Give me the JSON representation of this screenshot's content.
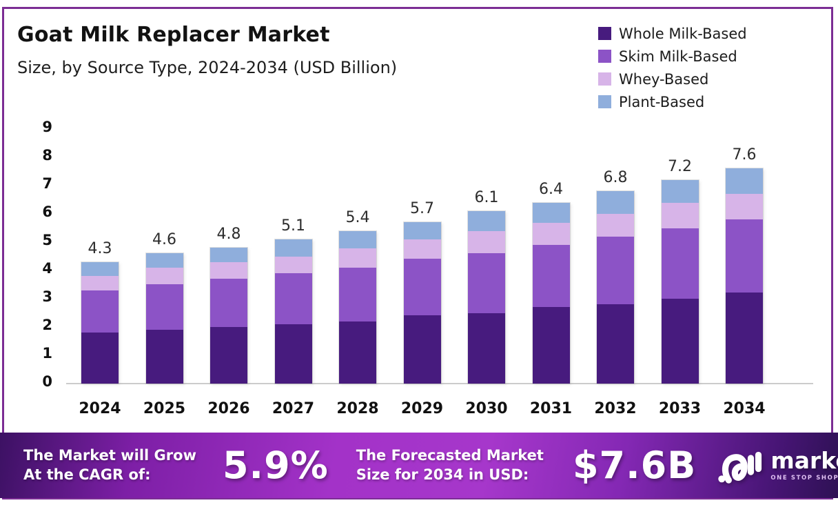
{
  "page": {
    "border_color": "#7b2d94",
    "background_color": "#ffffff"
  },
  "header": {
    "title": "Goat Milk Replacer Market",
    "subtitle": "Size, by Source Type, 2024-2034 (USD Billion)"
  },
  "chart_data": {
    "type": "bar",
    "stacked": true,
    "title": "Goat Milk Replacer Market Size, by Source Type, 2024-2034 (USD Billion)",
    "categories": [
      "2024",
      "2025",
      "2026",
      "2027",
      "2028",
      "2029",
      "2030",
      "2031",
      "2032",
      "2033",
      "2034"
    ],
    "series": [
      {
        "name": "Whole Milk-Based",
        "color": "#471b7e",
        "values": [
          1.8,
          1.9,
          2.0,
          2.1,
          2.2,
          2.4,
          2.5,
          2.7,
          2.8,
          3.0,
          3.2
        ]
      },
      {
        "name": "Skim Milk-Based",
        "color": "#8c53c6",
        "values": [
          1.5,
          1.6,
          1.7,
          1.8,
          1.9,
          2.0,
          2.1,
          2.2,
          2.4,
          2.5,
          2.6
        ]
      },
      {
        "name": "Whey-Based",
        "color": "#d7b4e8",
        "values": [
          0.5,
          0.6,
          0.6,
          0.6,
          0.7,
          0.7,
          0.8,
          0.8,
          0.8,
          0.9,
          0.9
        ]
      },
      {
        "name": "Plant-Based",
        "color": "#8faedc",
        "values": [
          0.5,
          0.5,
          0.5,
          0.6,
          0.6,
          0.6,
          0.7,
          0.7,
          0.8,
          0.8,
          0.9
        ]
      }
    ],
    "totals": [
      "4.3",
      "4.6",
      "4.8",
      "5.1",
      "5.4",
      "5.7",
      "6.1",
      "6.4",
      "6.8",
      "7.2",
      "7.6"
    ],
    "ylim": [
      0,
      9
    ],
    "yticks": [
      "0",
      "1",
      "2",
      "3",
      "4",
      "5",
      "6",
      "7",
      "8",
      "9"
    ],
    "xlabel": "",
    "ylabel": "",
    "grid": false,
    "legend_position": "top-right"
  },
  "footer": {
    "cagr_label_line1": "The Market will Grow",
    "cagr_label_line2": "At the CAGR of:",
    "cagr_value": "5.9%",
    "forecast_label_line1": "The Forecasted Market",
    "forecast_label_line2": "Size for 2034 in USD:",
    "forecast_value": "$7.6B",
    "brand": {
      "name": "market.us",
      "tagline": "ONE STOP SHOP FOR THE REPORTS"
    }
  }
}
